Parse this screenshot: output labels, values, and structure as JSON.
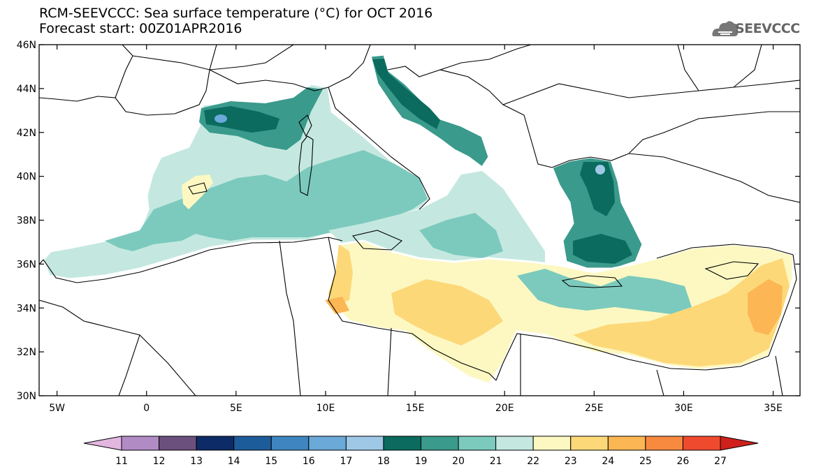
{
  "title": {
    "line1": "RCM-SEEVCCC: Sea surface temperature (°C) for OCT 2016",
    "line2": "Forecast start: 00Z01APR2016"
  },
  "logo": {
    "text": "SEEVCCC",
    "icon": "cloud-icon"
  },
  "map": {
    "lat_labels": [
      "46N",
      "44N",
      "42N",
      "40N",
      "38N",
      "36N",
      "34N",
      "32N",
      "30N"
    ],
    "lon_labels": [
      "5W",
      "0",
      "5E",
      "10E",
      "15E",
      "20E",
      "25E",
      "30E",
      "35E"
    ],
    "lat_range": [
      30,
      46
    ],
    "lon_range": [
      -6,
      36.5
    ]
  },
  "colorbar": {
    "labels": [
      "11",
      "12",
      "13",
      "14",
      "15",
      "16",
      "17",
      "18",
      "19",
      "20",
      "21",
      "22",
      "23",
      "24",
      "25",
      "26",
      "27"
    ],
    "colors": [
      "#e3b6e0",
      "#b08bc4",
      "#6b4f7c",
      "#0d2b66",
      "#1d5c9a",
      "#3f86c0",
      "#6aa9d8",
      "#9ec8e6",
      "#0a6b5e",
      "#3a9a8c",
      "#7ccabd",
      "#c4e8e0",
      "#fdf8c2",
      "#fdd878",
      "#fcb654",
      "#f88a3f",
      "#ef4a2e",
      "#d0201c"
    ]
  }
}
